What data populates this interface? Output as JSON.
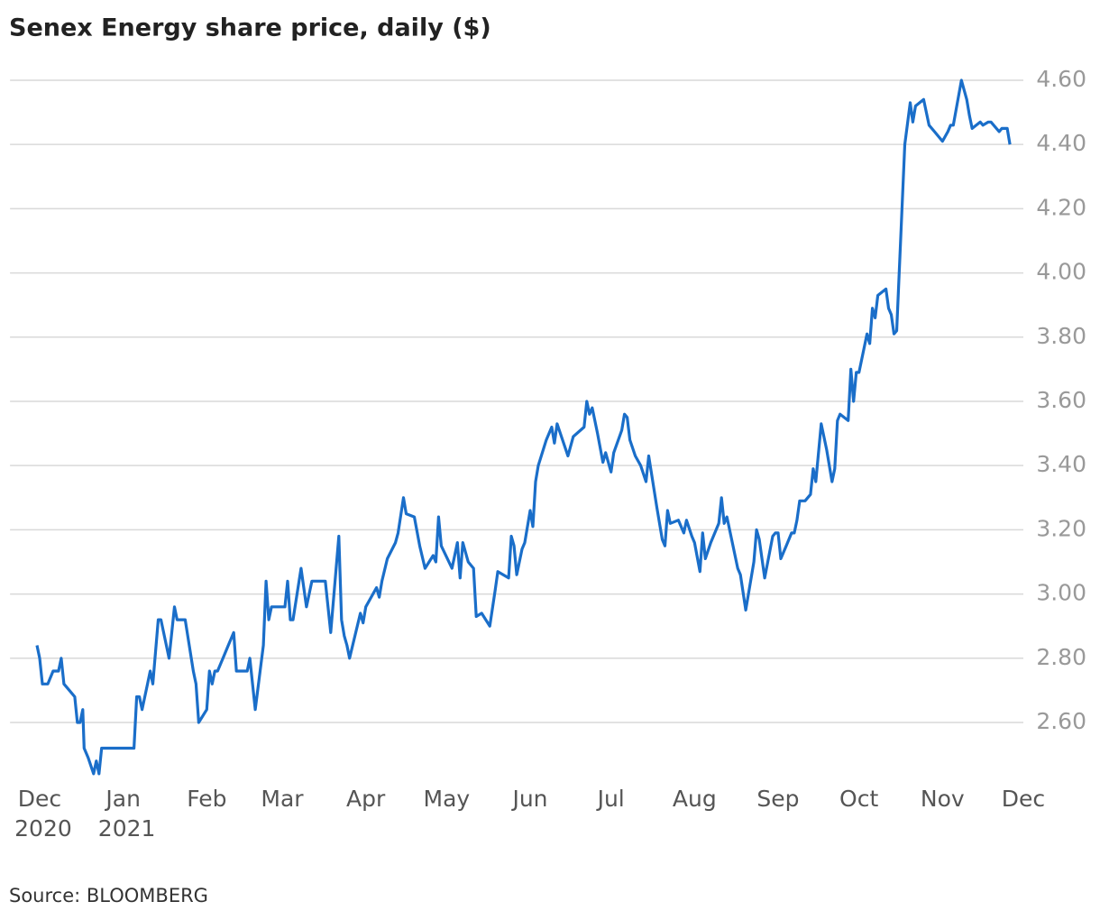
{
  "chart_data": {
    "type": "line",
    "title": "Senex Energy share price, daily ($)",
    "source": "Source: BLOOMBERG",
    "x": [
      -1,
      0,
      1,
      3,
      5,
      7,
      8,
      9,
      10,
      13,
      14,
      15,
      16,
      16.5,
      18,
      20,
      21,
      22,
      23,
      35,
      36,
      37,
      38,
      40,
      41,
      42,
      44,
      45,
      48,
      50,
      51,
      54,
      57,
      58,
      59,
      62,
      63,
      64,
      65,
      66,
      68,
      70,
      72,
      73,
      77,
      78,
      80,
      83,
      84,
      85,
      86,
      91,
      92,
      93,
      94,
      97,
      99,
      101,
      106,
      108,
      111,
      112,
      113,
      114,
      115,
      119,
      120,
      121,
      125,
      126,
      127,
      129,
      132,
      133,
      135,
      136,
      139,
      141,
      143,
      146,
      147,
      148,
      149,
      153,
      155,
      156,
      157,
      159,
      161,
      162,
      164,
      167,
      169,
      170,
      172,
      174,
      175,
      176,
      177,
      179,
      180,
      182,
      183,
      184,
      185,
      188,
      190,
      191,
      192,
      196,
      198,
      202,
      203,
      204,
      205,
      207,
      209,
      210,
      212,
      213,
      216,
      217,
      218,
      219,
      221,
      223,
      225,
      226,
      229,
      231,
      232,
      233,
      234,
      237,
      239,
      240,
      242,
      243,
      245,
      246,
      247,
      249,
      252,
      253,
      254,
      255,
      259,
      260,
      262,
      265,
      266,
      267,
      269,
      272,
      273,
      274,
      275,
      277,
      279,
      280,
      281,
      282,
      284,
      286,
      287,
      288,
      290,
      292,
      294,
      295,
      296,
      297,
      300,
      301,
      302,
      303,
      304,
      307,
      308,
      309,
      310,
      311,
      314,
      315,
      316,
      317,
      318,
      321,
      323,
      324,
      325,
      328,
      330,
      332,
      335,
      337,
      338,
      339,
      342,
      344,
      345,
      346,
      349,
      350,
      352,
      353,
      356,
      357,
      359,
      360
    ],
    "series": [
      {
        "name": "Senex Energy",
        "color": "#1a6ec9",
        "values": [
          2.84,
          2.8,
          2.72,
          2.72,
          2.76,
          2.76,
          2.8,
          2.72,
          2.71,
          2.68,
          2.6,
          2.6,
          2.64,
          2.52,
          2.49,
          2.44,
          2.48,
          2.44,
          2.52,
          2.52,
          2.68,
          2.68,
          2.64,
          2.72,
          2.76,
          2.72,
          2.92,
          2.92,
          2.8,
          2.96,
          2.92,
          2.92,
          2.76,
          2.72,
          2.6,
          2.64,
          2.76,
          2.72,
          2.76,
          2.76,
          2.8,
          2.84,
          2.88,
          2.76,
          2.76,
          2.8,
          2.64,
          2.84,
          3.04,
          2.92,
          2.96,
          2.96,
          3.04,
          2.92,
          2.92,
          3.08,
          2.96,
          3.04,
          3.04,
          2.88,
          3.18,
          2.92,
          2.87,
          2.84,
          2.8,
          2.94,
          2.91,
          2.96,
          3.02,
          2.99,
          3.04,
          3.11,
          3.16,
          3.19,
          3.3,
          3.25,
          3.24,
          3.15,
          3.08,
          3.12,
          3.1,
          3.24,
          3.15,
          3.08,
          3.16,
          3.05,
          3.16,
          3.1,
          3.08,
          2.93,
          2.94,
          2.9,
          3.01,
          3.07,
          3.06,
          3.05,
          3.18,
          3.15,
          3.06,
          3.14,
          3.16,
          3.26,
          3.21,
          3.35,
          3.4,
          3.48,
          3.52,
          3.47,
          3.53,
          3.43,
          3.49,
          3.52,
          3.6,
          3.56,
          3.58,
          3.5,
          3.41,
          3.44,
          3.38,
          3.44,
          3.51,
          3.56,
          3.55,
          3.48,
          3.43,
          3.4,
          3.35,
          3.43,
          3.27,
          3.17,
          3.15,
          3.26,
          3.22,
          3.23,
          3.19,
          3.23,
          3.18,
          3.16,
          3.07,
          3.19,
          3.11,
          3.16,
          3.22,
          3.3,
          3.22,
          3.24,
          3.08,
          3.06,
          2.95,
          3.1,
          3.2,
          3.17,
          3.05,
          3.18,
          3.19,
          3.19,
          3.11,
          3.15,
          3.19,
          3.19,
          3.23,
          3.29,
          3.29,
          3.31,
          3.39,
          3.35,
          3.53,
          3.45,
          3.35,
          3.39,
          3.54,
          3.56,
          3.54,
          3.7,
          3.6,
          3.69,
          3.69,
          3.81,
          3.78,
          3.89,
          3.86,
          3.93,
          3.95,
          3.89,
          3.87,
          3.81,
          3.82,
          4.4,
          4.53,
          4.47,
          4.52,
          4.54,
          4.46,
          4.44,
          4.41,
          4.44,
          4.46,
          4.46,
          4.6,
          4.54,
          4.49,
          4.45,
          4.47,
          4.46,
          4.47,
          4.47,
          4.44,
          4.45,
          4.45,
          4.4
        ]
      }
    ],
    "xlim": [
      -11,
      365
    ],
    "xticks": [
      {
        "value": 0,
        "label": "Dec 2020"
      },
      {
        "value": 31,
        "label": "Jan 2021"
      },
      {
        "value": 62,
        "label": "Feb"
      },
      {
        "value": 90,
        "label": "Mar"
      },
      {
        "value": 121,
        "label": "Apr"
      },
      {
        "value": 151,
        "label": "May"
      },
      {
        "value": 182,
        "label": "Jun"
      },
      {
        "value": 212,
        "label": "Jul"
      },
      {
        "value": 243,
        "label": "Aug"
      },
      {
        "value": 274,
        "label": "Sep"
      },
      {
        "value": 304,
        "label": "Oct"
      },
      {
        "value": 335,
        "label": "Nov"
      },
      {
        "value": 365,
        "label": "Dec"
      }
    ],
    "ylim": [
      2.43,
      4.68
    ],
    "yticks": [
      {
        "value": 2.6,
        "label": "2.60"
      },
      {
        "value": 2.8,
        "label": "2.80"
      },
      {
        "value": 3.0,
        "label": "3.00"
      },
      {
        "value": 3.2,
        "label": "3.20"
      },
      {
        "value": 3.4,
        "label": "3.40"
      },
      {
        "value": 3.6,
        "label": "3.60"
      },
      {
        "value": 3.8,
        "label": "3.80"
      },
      {
        "value": 4.0,
        "label": "4.00"
      },
      {
        "value": 4.2,
        "label": "4.20"
      },
      {
        "value": 4.4,
        "label": "4.40"
      },
      {
        "value": 4.6,
        "label": "4.60"
      }
    ],
    "grid": true
  }
}
